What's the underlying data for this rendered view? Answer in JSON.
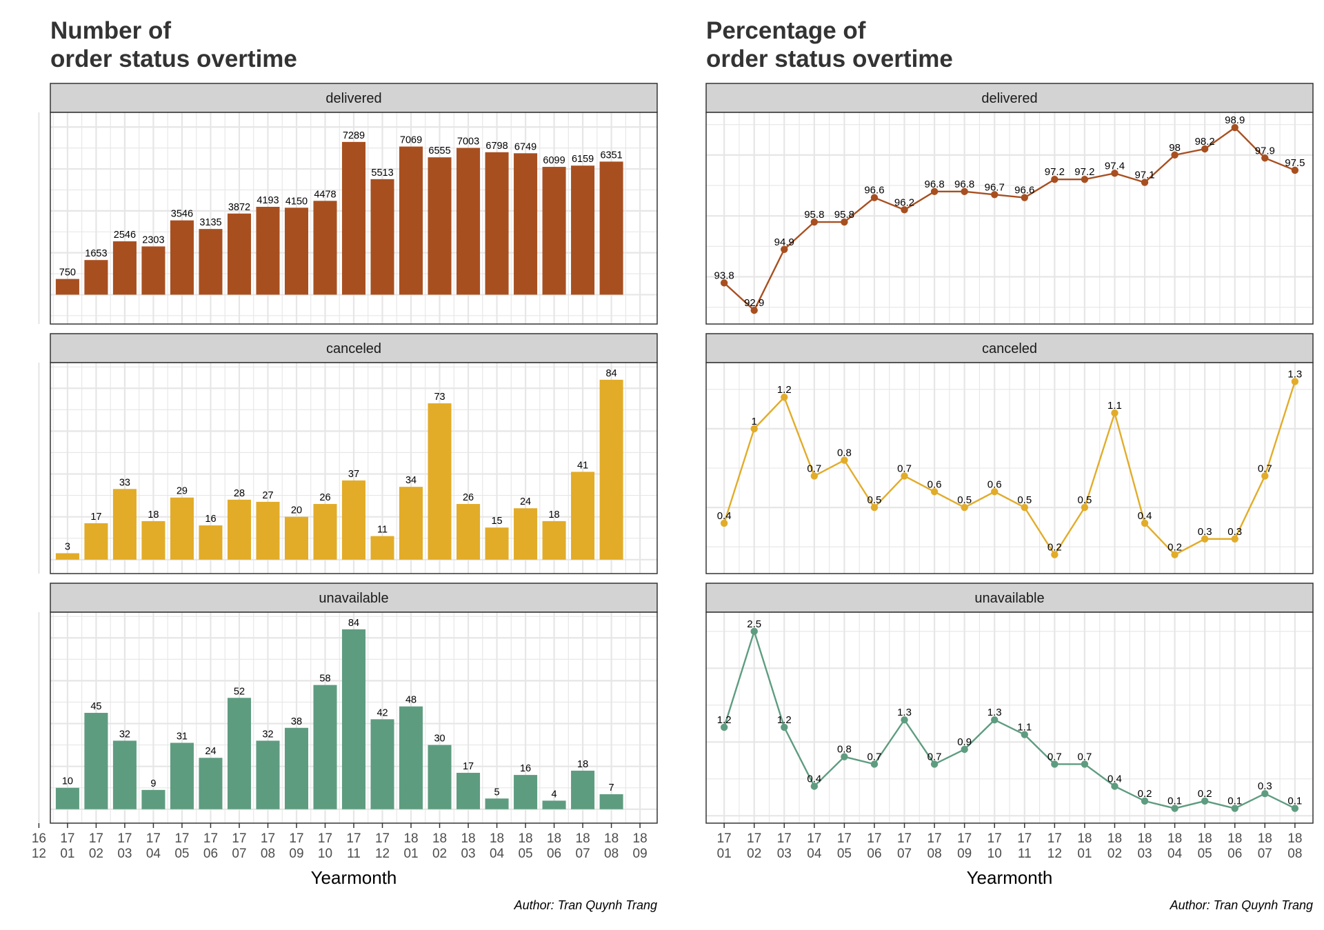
{
  "colors": {
    "delivered": "#A84F20",
    "canceled": "#E2AC29",
    "unavailable": "#5E9C80",
    "strip_bg": "#D3D3D3",
    "grid": "#E6E6E6",
    "frame": "#333333"
  },
  "chart_data": [
    {
      "type": "bar",
      "title": "Number of\norder status overtime",
      "xlabel": "Yearmonth",
      "caption": "Author: Tran Quynh Trang",
      "x_axis_ticks": [
        "16\n12",
        "17\n01",
        "17\n02",
        "17\n03",
        "17\n04",
        "17\n05",
        "17\n06",
        "17\n07",
        "17\n08",
        "17\n09",
        "17\n10",
        "17\n11",
        "17\n12",
        "18\n01",
        "18\n02",
        "18\n03",
        "18\n04",
        "18\n05",
        "18\n06",
        "18\n07",
        "18\n08",
        "18\n09"
      ],
      "categories": [
        "17\n01",
        "17\n02",
        "17\n03",
        "17\n04",
        "17\n05",
        "17\n06",
        "17\n07",
        "17\n08",
        "17\n09",
        "17\n10",
        "17\n11",
        "17\n12",
        "18\n01",
        "18\n02",
        "18\n03",
        "18\n04",
        "18\n05",
        "18\n06",
        "18\n07",
        "18\n08"
      ],
      "grid": true,
      "facets": [
        {
          "name": "delivered",
          "color_key": "delivered",
          "ylim": [
            -1400,
            8700
          ],
          "values": [
            750,
            1653,
            2546,
            2303,
            3546,
            3135,
            3872,
            4193,
            4150,
            4478,
            7289,
            5513,
            7069,
            6555,
            7003,
            6798,
            6749,
            6099,
            6159,
            6351
          ],
          "labels": [
            "750",
            "1653",
            "2546",
            "2303",
            "3546",
            "3135",
            "3872",
            "4193",
            "4150",
            "4478",
            "7289",
            "5513",
            "7069",
            "6555",
            "7003",
            "6798",
            "6749",
            "6099",
            "6159",
            "6351"
          ]
        },
        {
          "name": "canceled",
          "color_key": "canceled",
          "ylim": [
            -6.5,
            92
          ],
          "values": [
            3,
            17,
            33,
            18,
            29,
            16,
            28,
            27,
            20,
            26,
            37,
            11,
            34,
            73,
            26,
            15,
            24,
            18,
            41,
            84
          ],
          "labels": [
            "3",
            "17",
            "33",
            "18",
            "29",
            "16",
            "28",
            "27",
            "20",
            "26",
            "37",
            "11",
            "34",
            "73",
            "26",
            "15",
            "24",
            "18",
            "41",
            "84"
          ]
        },
        {
          "name": "unavailable",
          "color_key": "unavailable",
          "ylim": [
            -6.5,
            92
          ],
          "values": [
            10,
            45,
            32,
            9,
            31,
            24,
            52,
            32,
            38,
            58,
            84,
            42,
            48,
            30,
            17,
            5,
            16,
            4,
            18,
            7
          ],
          "labels": [
            "10",
            "45",
            "32",
            "9",
            "31",
            "24",
            "52",
            "32",
            "38",
            "58",
            "84",
            "42",
            "48",
            "30",
            "17",
            "5",
            "16",
            "4",
            "18",
            "7"
          ]
        }
      ]
    },
    {
      "type": "line",
      "title": "Percentage of\norder status overtime",
      "xlabel": "Yearmonth",
      "caption": "Author: Tran Quynh Trang",
      "categories": [
        "17\n01",
        "17\n02",
        "17\n03",
        "17\n04",
        "17\n05",
        "17\n06",
        "17\n07",
        "17\n08",
        "17\n09",
        "17\n10",
        "17\n11",
        "17\n12",
        "18\n01",
        "18\n02",
        "18\n03",
        "18\n04",
        "18\n05",
        "18\n06",
        "18\n07",
        "18\n08"
      ],
      "grid": true,
      "facets": [
        {
          "name": "delivered",
          "color_key": "delivered",
          "ylim": [
            92.45,
            99.4
          ],
          "values": [
            93.8,
            92.9,
            94.9,
            95.8,
            95.8,
            96.6,
            96.2,
            96.8,
            96.8,
            96.7,
            96.6,
            97.2,
            97.2,
            97.4,
            97.1,
            98,
            98.2,
            98.9,
            97.9,
            97.5
          ],
          "labels": [
            "93.8",
            "92.9",
            "94.9",
            "95.8",
            "95.8",
            "96.6",
            "96.2",
            "96.8",
            "96.8",
            "96.7",
            "96.6",
            "97.2",
            "97.2",
            "97.4",
            "97.1",
            "98",
            "98.2",
            "98.9",
            "97.9",
            "97.5"
          ]
        },
        {
          "name": "canceled",
          "color_key": "canceled",
          "ylim": [
            0.08,
            1.42
          ],
          "values": [
            0.4,
            1,
            1.2,
            0.7,
            0.8,
            0.5,
            0.7,
            0.6,
            0.5,
            0.6,
            0.5,
            0.2,
            0.5,
            1.1,
            0.4,
            0.2,
            0.3,
            0.3,
            0.7,
            1.3
          ],
          "labels": [
            "0.4",
            "1",
            "1.2",
            "0.7",
            "0.8",
            "0.5",
            "0.7",
            "0.6",
            "0.5",
            "0.6",
            "0.5",
            "0.2",
            "0.5",
            "1.1",
            "0.4",
            "0.2",
            "0.3",
            "0.3",
            "0.7",
            "1.3"
          ]
        },
        {
          "name": "unavailable",
          "color_key": "unavailable",
          "ylim": [
            -0.1,
            2.76
          ],
          "values": [
            1.2,
            2.5,
            1.2,
            0.4,
            0.8,
            0.7,
            1.3,
            0.7,
            0.9,
            1.3,
            1.1,
            0.7,
            0.7,
            0.4,
            0.2,
            0.1,
            0.2,
            0.1,
            0.3,
            0.1
          ],
          "labels": [
            "1.2",
            "2.5",
            "1.2",
            "0.4",
            "0.8",
            "0.7",
            "1.3",
            "0.7",
            "0.9",
            "1.3",
            "1.1",
            "0.7",
            "0.7",
            "0.4",
            "0.2",
            "0.1",
            "0.2",
            "0.1",
            "0.3",
            "0.1"
          ]
        }
      ]
    }
  ]
}
